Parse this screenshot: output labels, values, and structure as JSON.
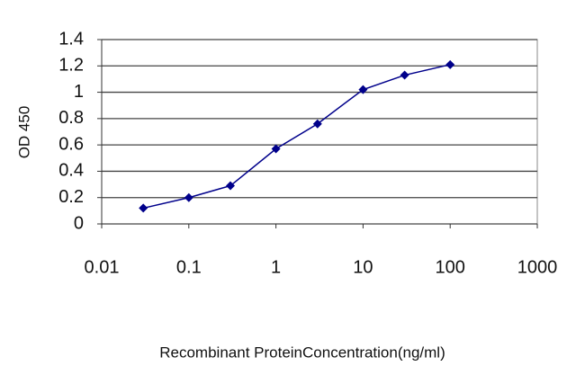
{
  "chart_data": {
    "type": "line",
    "x": [
      0.03,
      0.1,
      0.3,
      1,
      3,
      10,
      30,
      100
    ],
    "series": [
      {
        "name": "OD 450",
        "color": "#00008b",
        "values": [
          0.12,
          0.2,
          0.29,
          0.57,
          0.76,
          1.02,
          1.13,
          1.21
        ]
      }
    ],
    "xlim": [
      0.01,
      1000
    ],
    "xticks": [
      0.01,
      0.1,
      1,
      10,
      100,
      1000
    ],
    "xscale": "log",
    "ylim": [
      0,
      1.4
    ],
    "yticks": [
      0,
      0.2,
      0.4,
      0.6,
      0.8,
      1,
      1.2,
      1.4
    ],
    "grid": true,
    "xlabel": "Recombinant ProteinConcentration(ng/ml)",
    "ylabel": "OD 450"
  }
}
